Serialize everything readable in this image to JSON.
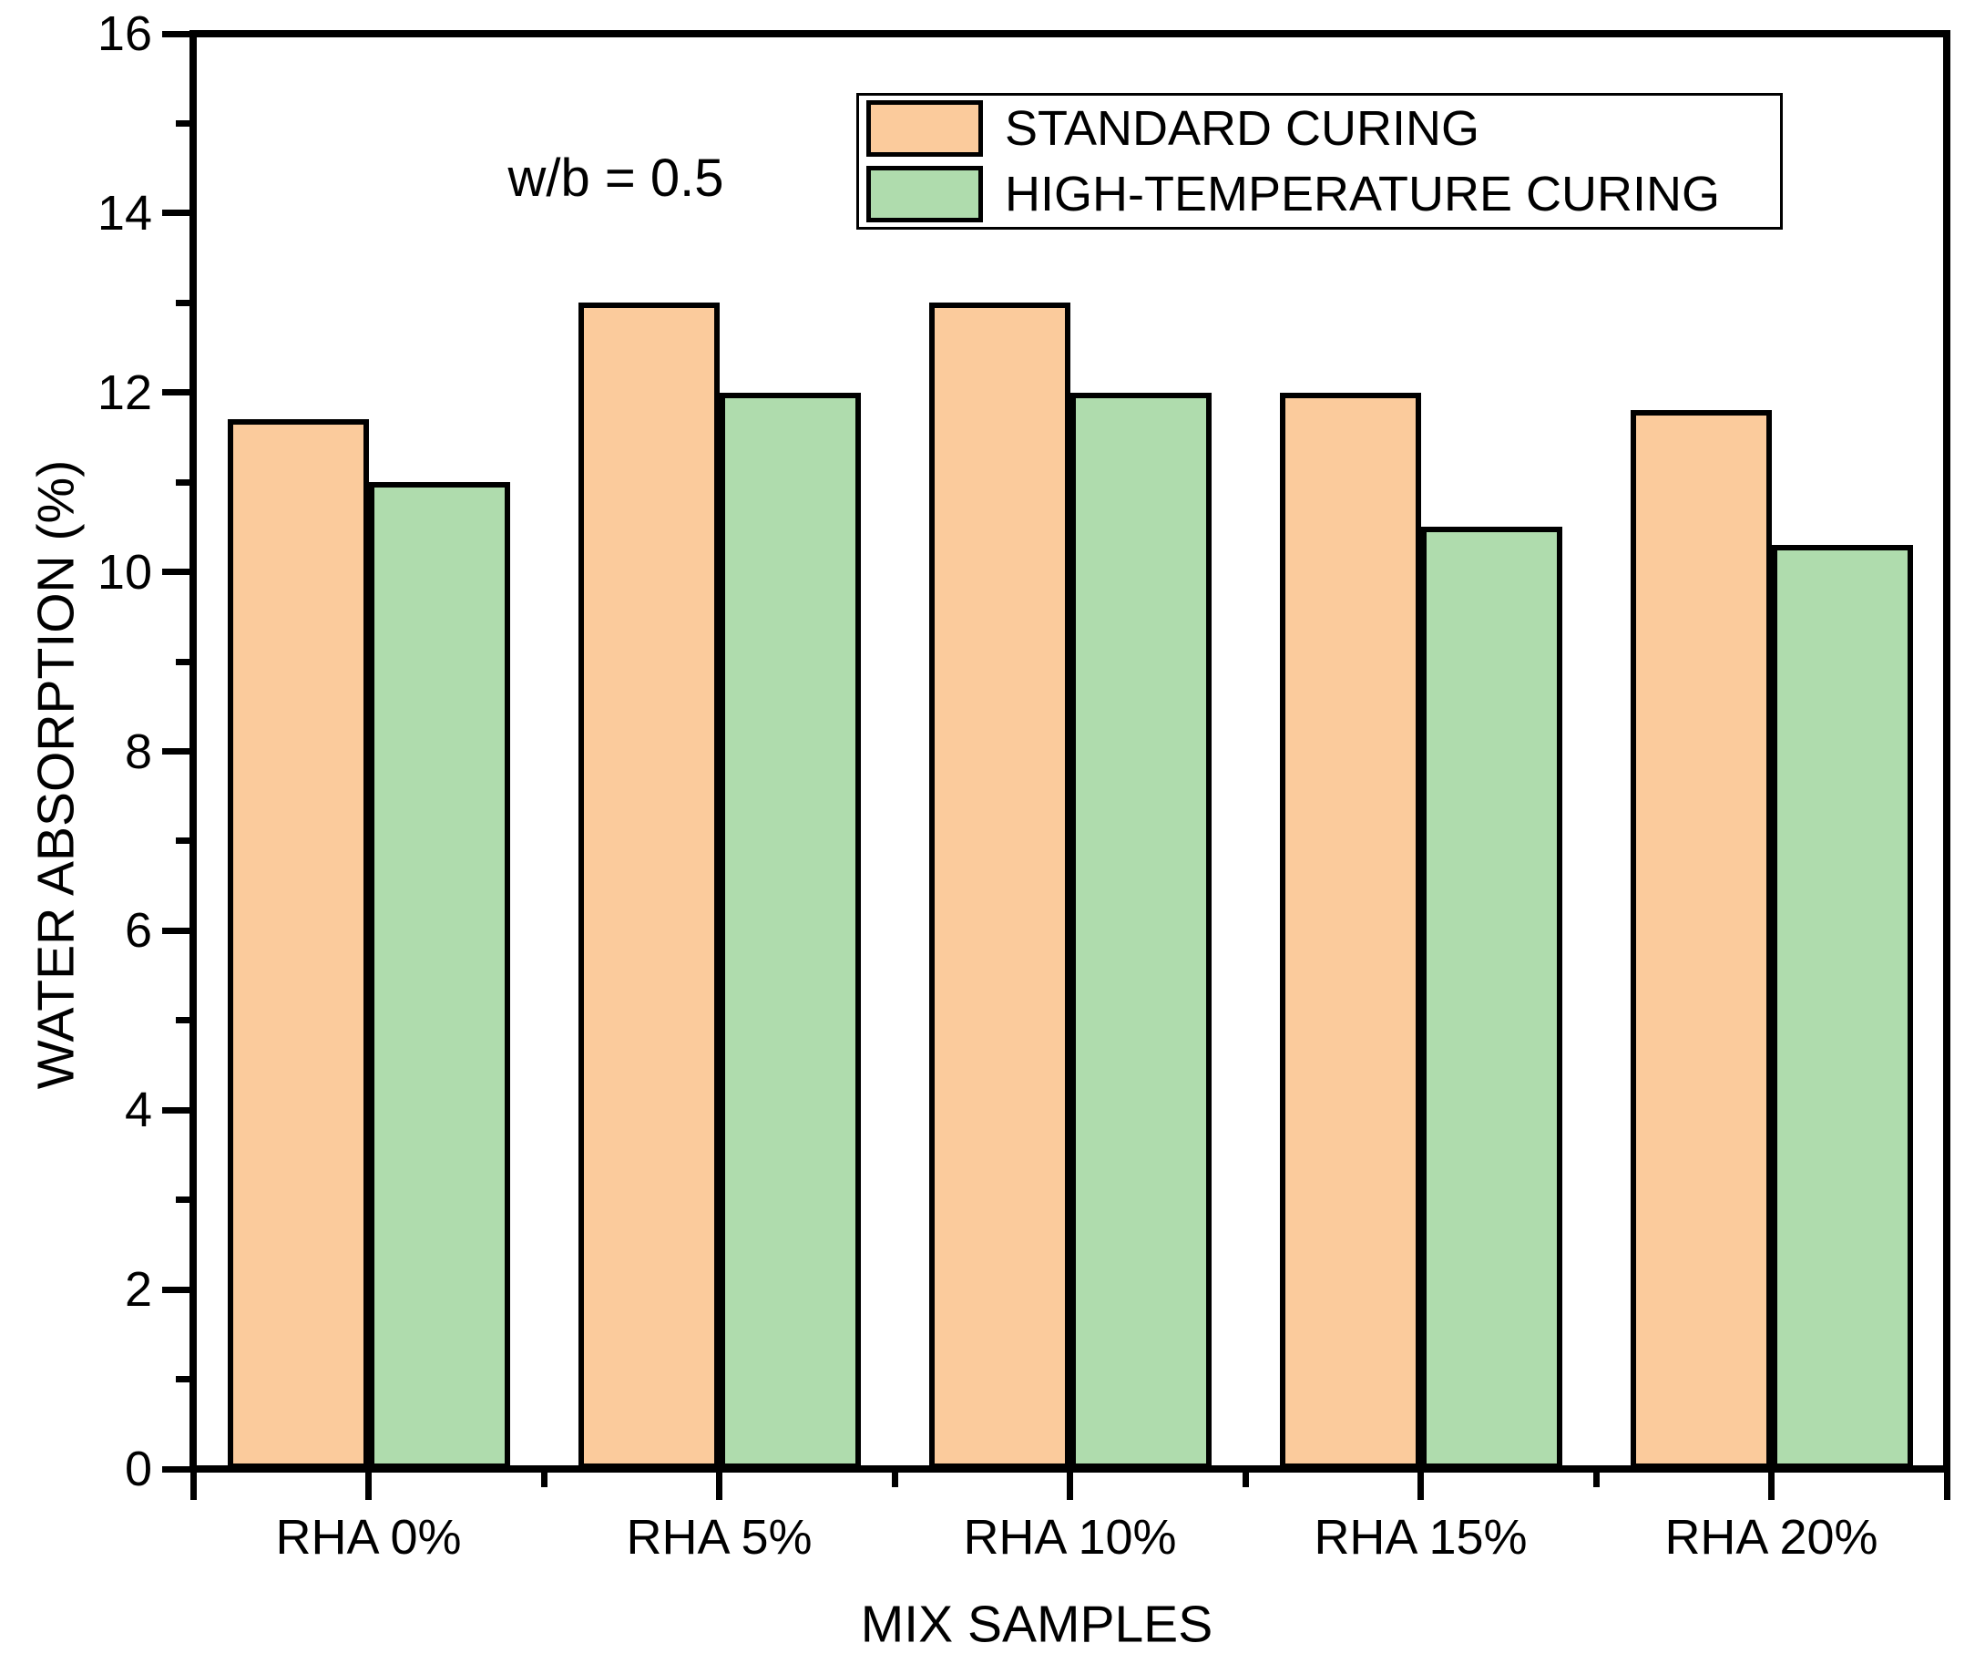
{
  "chart_data": {
    "type": "bar",
    "title": "",
    "categories": [
      "RHA 0%",
      "RHA 5%",
      "RHA 10%",
      "RHA 15%",
      "RHA 20%"
    ],
    "series": [
      {
        "name": "STANDARD CURING",
        "color": "#FBCB9C",
        "values": [
          11.7,
          13.0,
          13.0,
          12.0,
          11.8
        ]
      },
      {
        "name": "HIGH-TEMPERATURE CURING",
        "color": "#AFDCAD",
        "values": [
          11.0,
          12.0,
          12.0,
          10.5,
          10.3
        ]
      }
    ],
    "xlabel": "MIX SAMPLES",
    "ylabel": "WATER ABSORPTION (%)",
    "ylim": [
      0,
      16
    ],
    "y_major_step": 2,
    "y_minor_step": 1,
    "y_tick_labels": [
      "0",
      "2",
      "4",
      "6",
      "8",
      "10",
      "12",
      "14",
      "16"
    ],
    "annotation": "w/b = 0.5",
    "legend_position": "top-center-inside",
    "grid": false,
    "bar_edge_color": "#000000",
    "frame": true
  }
}
